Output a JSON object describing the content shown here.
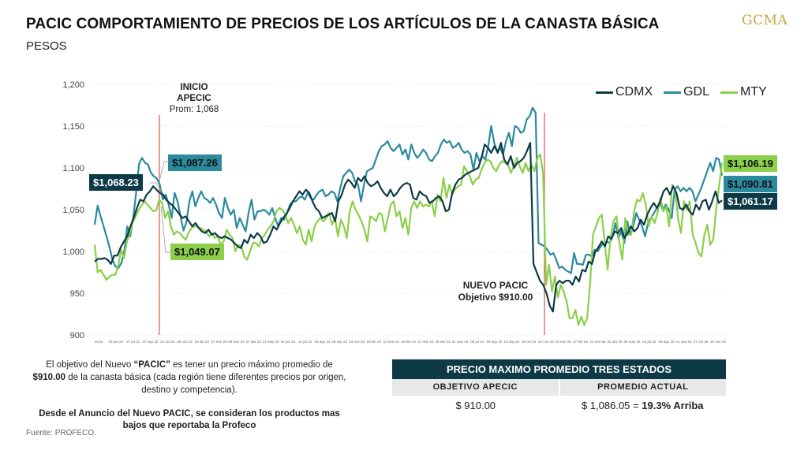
{
  "header": {
    "title": "PACIC COMPORTAMIENTO DE PRECIOS DE LOS ARTÍCULOS DE LA CANASTA BÁSICA",
    "subtitle": "PESOS",
    "logo": "GCMA"
  },
  "chart_data": {
    "type": "line",
    "title": "PACIC COMPORTAMIENTO DE PRECIOS DE LOS ARTÍCULOS DE LA CANASTA BÁSICA",
    "ylabel": "PESOS",
    "xlabel": "",
    "ylim": [
      900,
      1200
    ],
    "yticks": [
      900,
      950,
      1000,
      1050,
      1100,
      1150,
      1200
    ],
    "ytick_labels": [
      "900",
      "950",
      "1,000",
      "1,050",
      "1,100",
      "1,150",
      "1,200"
    ],
    "grid": true,
    "legend_position": "top-right",
    "xtick_labels": [
      "Inicio",
      "30 jun 22",
      "27 jul 22",
      "07 sep 22",
      "24 oct 22",
      "28 nov 22",
      "23 dic 22",
      "27 ene 23",
      "09 mar 23",
      "07 abr 23",
      "12 may 23",
      "16 jun 23",
      "21 jul 23",
      "25 ago 23",
      "29 sep 23",
      "03 nov 23",
      "08 dic 23",
      "12 ene 24",
      "16 feb 24",
      "27 mar 24",
      "26 abr 24",
      "31 may 24",
      "05 jul 24",
      "09 ago 24",
      "13 sep 24",
      "18 oct 24",
      "22 nov 24",
      "03 ene 25",
      "07 feb 25",
      "21 mar 25",
      "25 abr 25",
      "30 may 25",
      "04 jul 25",
      "08 ago 25",
      "12 sep 25",
      "27 oct 25",
      "20 nov 25"
    ],
    "series": [
      {
        "name": "CDMX",
        "color": "#0e3a47",
        "values": [
          988,
          991,
          991,
          992,
          990,
          985,
          995,
          995,
          1005,
          1012,
          1018,
          1030,
          1040,
          1052,
          1062,
          1060,
          1068,
          1072,
          1078,
          1074,
          1070,
          1068,
          1062,
          1058,
          1055,
          1050,
          1045,
          1040,
          1042,
          1036,
          1030,
          1034,
          1028,
          1024,
          1022,
          1026,
          1020,
          1022,
          1018,
          1016,
          1018,
          1016,
          1014,
          1010,
          1006,
          1004,
          1014,
          1010,
          1020,
          1016,
          1022,
          1018,
          1010,
          1012,
          1020,
          1030,
          1026,
          1034,
          1040,
          1045,
          1052,
          1060,
          1066,
          1072,
          1068,
          1074,
          1070,
          1060,
          1052,
          1048,
          1040,
          1042,
          1044,
          1046,
          1036,
          1060,
          1068,
          1080,
          1086,
          1082,
          1076,
          1088,
          1084,
          1090,
          1082,
          1078,
          1080,
          1084,
          1076,
          1070,
          1066,
          1074,
          1066,
          1070,
          1076,
          1080,
          1082,
          1080,
          1064,
          1062,
          1072,
          1068,
          1066,
          1058,
          1060,
          1064,
          1066,
          1060,
          1048,
          1050,
          1070,
          1080,
          1086,
          1088,
          1092,
          1094,
          1096,
          1098,
          1100,
          1112,
          1128,
          1124,
          1118,
          1126,
          1118,
          1130,
          1110,
          1104,
          1114,
          1100,
          1106,
          1108,
          1112,
          1120,
          1130,
          985,
          975,
          965,
          960,
          950,
          935,
          928,
          960,
          965,
          962,
          965,
          965,
          960,
          970,
          964,
          978,
          976,
          988,
          985,
          1000,
          1005,
          1012,
          1006,
          1018,
          1015,
          1024,
          1022,
          1028,
          1016,
          1022,
          1030,
          1024,
          1028,
          1038,
          1032,
          1044,
          1052,
          1058,
          1052,
          1060,
          1072,
          1076,
          1068,
          1078,
          1070,
          1052,
          1050,
          1056,
          1048,
          1044,
          1056,
          1050,
          1060,
          1062,
          1050,
          1060,
          1072,
          1058,
          1061.17
        ]
      },
      {
        "name": "GDL",
        "color": "#2b8a9e",
        "values": [
          1032,
          1055,
          1042,
          1030,
          1018,
          1005,
          990,
          982,
          980,
          986,
          1000,
          1030,
          1018,
          1040,
          1070,
          1105,
          1112,
          1106,
          1104,
          1094,
          1090,
          1087.26,
          1080,
          1062,
          1068,
          1056,
          1040,
          1070,
          1060,
          1042,
          1025,
          1035,
          1060,
          1072,
          1054,
          1064,
          1072,
          1064,
          1062,
          1058,
          1064,
          1056,
          1046,
          1040,
          1064,
          1052,
          1044,
          1050,
          1028,
          1040,
          1032,
          1024,
          1046,
          1062,
          1038,
          1048,
          1048,
          1050,
          1048,
          1044,
          1052,
          1040,
          1030,
          1040,
          1038,
          1046,
          1056,
          1060,
          1060,
          1064,
          1066,
          1062,
          1070,
          1064,
          1062,
          1068,
          1072,
          1074,
          1066,
          1068,
          1072,
          1070,
          1060,
          1076,
          1090,
          1094,
          1098,
          1094,
          1084,
          1080,
          1060,
          1080,
          1096,
          1098,
          1100,
          1110,
          1120,
          1126,
          1128,
          1132,
          1124,
          1120,
          1124,
          1128,
          1116,
          1122,
          1110,
          1128,
          1118,
          1112,
          1116,
          1122,
          1118,
          1110,
          1108,
          1114,
          1118,
          1128,
          1134,
          1130,
          1132,
          1124,
          1126,
          1130,
          1122,
          1118,
          1120,
          1116,
          1098,
          1118,
          1108,
          1114,
          1110,
          1126,
          1150,
          1130,
          1120,
          1124,
          1116,
          1132,
          1142,
          1126,
          1150,
          1148,
          1142,
          1144,
          1158,
          1162,
          1172,
          1166,
          1010,
          1008,
          1006,
          1002,
          996,
          998,
          990,
          980,
          982,
          978,
          976,
          974,
          998,
          985,
          985,
          984,
          996,
          996,
          994,
          1002,
          1000,
          1006,
          1010,
          1012,
          1010,
          1018,
          1034,
          1016,
          1024,
          1010,
          1036,
          1020,
          1030,
          1046,
          1038,
          1030,
          1018,
          1034,
          1040,
          1046,
          1052,
          1058,
          1050,
          1056,
          1050,
          1040,
          1074,
          1078,
          1072,
          1076,
          1072,
          1076,
          1072,
          1060,
          1068,
          1076,
          1086,
          1096,
          1106,
          1096,
          1112,
          1110,
          1090.81
        ]
      },
      {
        "name": "MTY",
        "color": "#8bcf4a",
        "values": [
          1008,
          975,
          978,
          972,
          966,
          970,
          972,
          972,
          982,
          1002,
          992,
          1012,
          1022,
          1035,
          1042,
          1050,
          1055,
          1060,
          1056,
          1052,
          1048,
          1049.07,
          1062,
          1058,
          1040,
          1048,
          1030,
          1020,
          1024,
          1022,
          1018,
          1014,
          1022,
          1028,
          1030,
          1030,
          1028,
          1026,
          1024,
          1018,
          1022,
          1016,
          1018,
          1008,
          1012,
          1026,
          1020,
          1016,
          1000,
          1008,
          1006,
          994,
          990,
          1000,
          1010,
          1010,
          1006,
          1016,
          1020,
          1026,
          1030,
          1036,
          1048,
          1052,
          1050,
          1044,
          1034,
          1040,
          1032,
          1022,
          1030,
          1014,
          1008,
          1026,
          1012,
          1030,
          1036,
          1040,
          1036,
          1040,
          1046,
          1032,
          1040,
          1018,
          1038,
          1030,
          1016,
          1048,
          1060,
          1050,
          1044,
          1036,
          1026,
          1012,
          1042,
          1040,
          1036,
          1046,
          1044,
          1024,
          1040,
          1056,
          1060,
          1042,
          1048,
          1028,
          1040,
          1020,
          1052,
          1060,
          1052,
          1060,
          1054,
          1056,
          1054,
          1060,
          1042,
          1068,
          1060,
          1088,
          1064,
          1080,
          1068,
          1075,
          1078,
          1080,
          1102,
          1096,
          1090,
          1080,
          1086,
          1088,
          1098,
          1106,
          1110,
          1108,
          1100,
          1096,
          1104,
          1108,
          1106,
          1104,
          1094,
          1102,
          1112,
          1102,
          1094,
          1106,
          1096,
          1104,
          1096,
          1112,
          1116,
          1092,
          960,
          984,
          952,
          970,
          945,
          960,
          952,
          940,
          920,
          920,
          930,
          912,
          922,
          912,
          920,
          960,
          1020,
          1030,
          1040,
          1044,
          1010,
          978,
          1018,
          1036,
          1042,
          1010,
          990,
          1040,
          1020,
          1020,
          1048,
          1062,
          1060,
          1070,
          1056,
          1030,
          1042,
          1034,
          1046,
          1064,
          1048,
          1054,
          1030,
          1080,
          1074,
          1040,
          1022,
          1060,
          1050,
          1060,
          1020,
          1010,
          998,
          994,
          1020,
          1032,
          1008,
          1014,
          1050,
          1078,
          1106.19
        ]
      }
    ],
    "markers": [
      {
        "label_lines": [
          "INICIO",
          "APECIC",
          "Prom: 1,068"
        ],
        "position": "Inicio APECIC"
      },
      {
        "label_lines": [
          "NUEVO PACIC",
          "Objetivo $910.00"
        ],
        "position": "Nuevo PACIC"
      }
    ],
    "callouts": [
      {
        "series": "CDMX",
        "text": "$1,068.23"
      },
      {
        "series": "GDL",
        "text": "$1,087.26"
      },
      {
        "series": "MTY",
        "text": "$1,049.07"
      },
      {
        "series": "MTY",
        "text": "$1,106.19"
      },
      {
        "series": "GDL",
        "text": "$1,090.81"
      },
      {
        "series": "CDMX",
        "text": "$1,061.17"
      }
    ]
  },
  "notes": {
    "p1_a": "El objetivo del Nuevo ",
    "p1_b": "“PACIC”",
    "p1_c": " es tener un precio máximo promedio de ",
    "p1_d": "$910.00",
    "p1_e": " de la canasta básica (cada región tiene diferentes precios por origen, destino y competencia).",
    "p2": "Desde el Anuncio del Nuevo PACIC, se consideran los productos mas bajos que reportaba la Profeco",
    "source": "Fuente: PROFECO."
  },
  "table": {
    "title": "PRECIO MAXIMO PROMEDIO TRES ESTADOS",
    "col1_header": "OBJETIVO APECIC",
    "col2_header": "PROMEDIO ACTUAL",
    "col1_value": "$ 910.00",
    "col2_value": "$ 1,086.05  =",
    "col2_highlight": "19.3% Arriba"
  }
}
